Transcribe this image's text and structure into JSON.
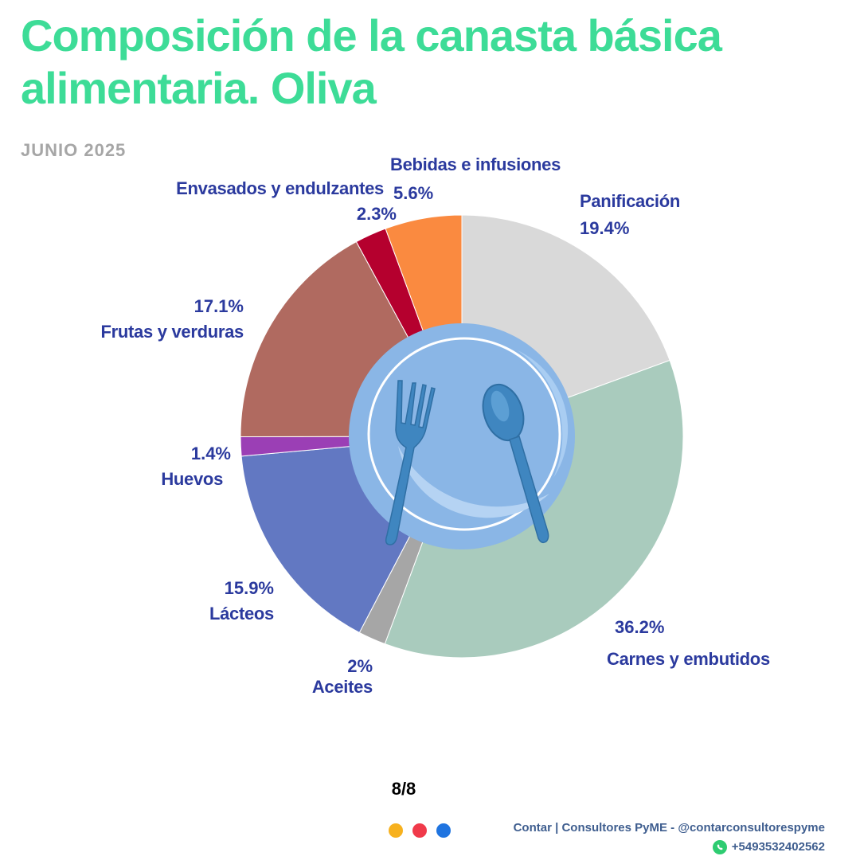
{
  "colors": {
    "title": "#3ddc97",
    "label": "#2b3a9e",
    "subtitle": "#a6a6a6",
    "plate_outer": "#8ab6e6",
    "plate_inner": "#a9cdf2",
    "cutlery": "#3f86c0"
  },
  "header": {
    "title_line1": "Composición de la canasta básica",
    "title_line2": "alimentaria.  Oliva",
    "subtitle": "JUNIO 2025"
  },
  "chart_data": {
    "type": "pie",
    "title": "Composición de la canasta básica alimentaria.  Oliva",
    "subtitle": "JUNIO 2025",
    "slices": [
      {
        "name": "Panificación",
        "value": 19.4,
        "label": "19.4%",
        "color": "#d9d9d9"
      },
      {
        "name": "Carnes y embutidos",
        "value": 36.2,
        "label": "36.2%",
        "color": "#a9cbbd"
      },
      {
        "name": "Aceites",
        "value": 2.0,
        "label": "2%",
        "color": "#a6a6a6"
      },
      {
        "name": "Lácteos",
        "value": 15.9,
        "label": "15.9%",
        "color": "#6278c2"
      },
      {
        "name": "Huevos",
        "value": 1.4,
        "label": "1.4%",
        "color": "#9b3fb5"
      },
      {
        "name": "Frutas y verduras",
        "value": 17.1,
        "label": "17.1%",
        "color": "#b06a60"
      },
      {
        "name": "Envasados y endulzantes",
        "value": 2.3,
        "label": "2.3%",
        "color": "#b5002e"
      },
      {
        "name": "Bebidas e infusiones",
        "value": 5.6,
        "label": "5.6%",
        "color": "#fa8a40"
      }
    ]
  },
  "footer": {
    "page": "8/8",
    "brand": "Contar | Consultores PyME - @contarconsultorespyme",
    "phone": "+5493532402562",
    "dot_colors": [
      "#f7b11e",
      "#f03a4a",
      "#1f74e0"
    ]
  }
}
